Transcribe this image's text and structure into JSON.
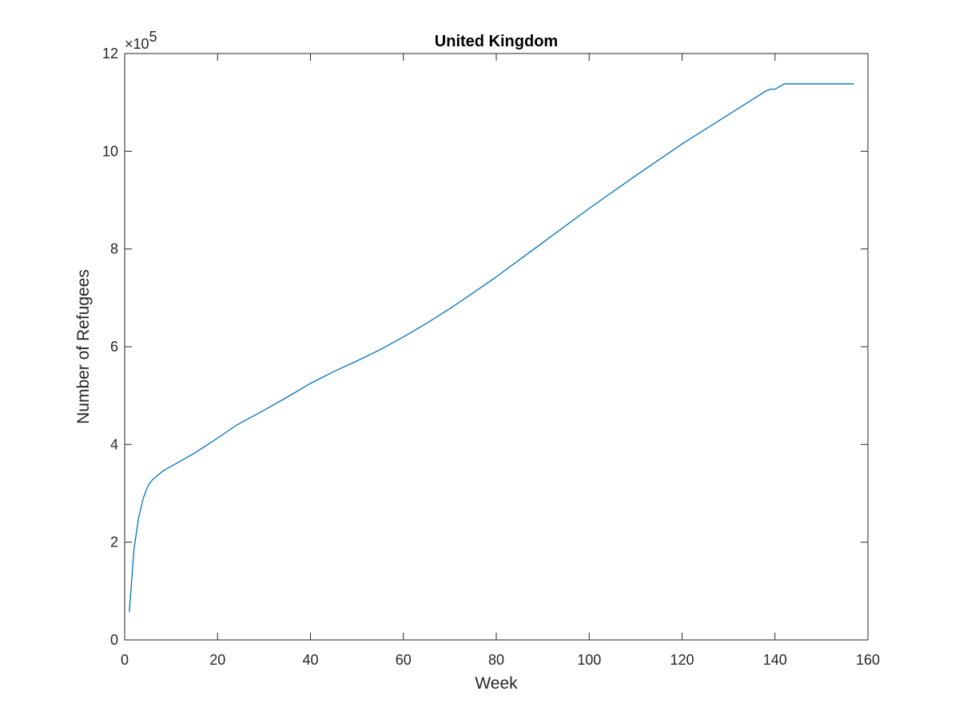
{
  "chart_data": {
    "type": "line",
    "title": "United Kingdom",
    "xlabel": "Week",
    "ylabel": "Number of Refugees",
    "y_multiplier_label": {
      "base": "×10",
      "exponent": "5"
    },
    "xlim": [
      0,
      160
    ],
    "ylim": [
      0,
      12
    ],
    "y_scale_factor": 100000,
    "xticks": [
      0,
      20,
      40,
      60,
      80,
      100,
      120,
      140,
      160
    ],
    "xtick_labels": [
      "0",
      "20",
      "40",
      "60",
      "80",
      "100",
      "120",
      "140",
      "160"
    ],
    "yticks": [
      0,
      2,
      4,
      6,
      8,
      10,
      12
    ],
    "ytick_labels": [
      "0",
      "2",
      "4",
      "6",
      "8",
      "10",
      "12"
    ],
    "grid": false,
    "legend": null,
    "colors": {
      "series": "#0072BD",
      "axes": "#262626"
    },
    "series": [
      {
        "x": [
          1,
          2,
          3,
          4,
          5,
          6,
          7,
          8,
          9,
          10,
          15,
          20,
          24,
          30,
          35,
          40,
          45,
          50,
          55,
          60,
          65,
          70,
          75,
          80,
          90,
          100,
          110,
          120,
          130,
          138,
          139,
          140,
          142,
          150,
          157
        ],
        "y": [
          0.57,
          1.85,
          2.5,
          2.9,
          3.15,
          3.28,
          3.36,
          3.44,
          3.5,
          3.55,
          3.82,
          4.13,
          4.39,
          4.7,
          4.97,
          5.25,
          5.49,
          5.71,
          5.94,
          6.2,
          6.48,
          6.78,
          7.1,
          7.43,
          8.13,
          8.83,
          9.5,
          10.15,
          10.75,
          11.23,
          11.27,
          11.27,
          11.38,
          11.38,
          11.38
        ]
      }
    ]
  }
}
